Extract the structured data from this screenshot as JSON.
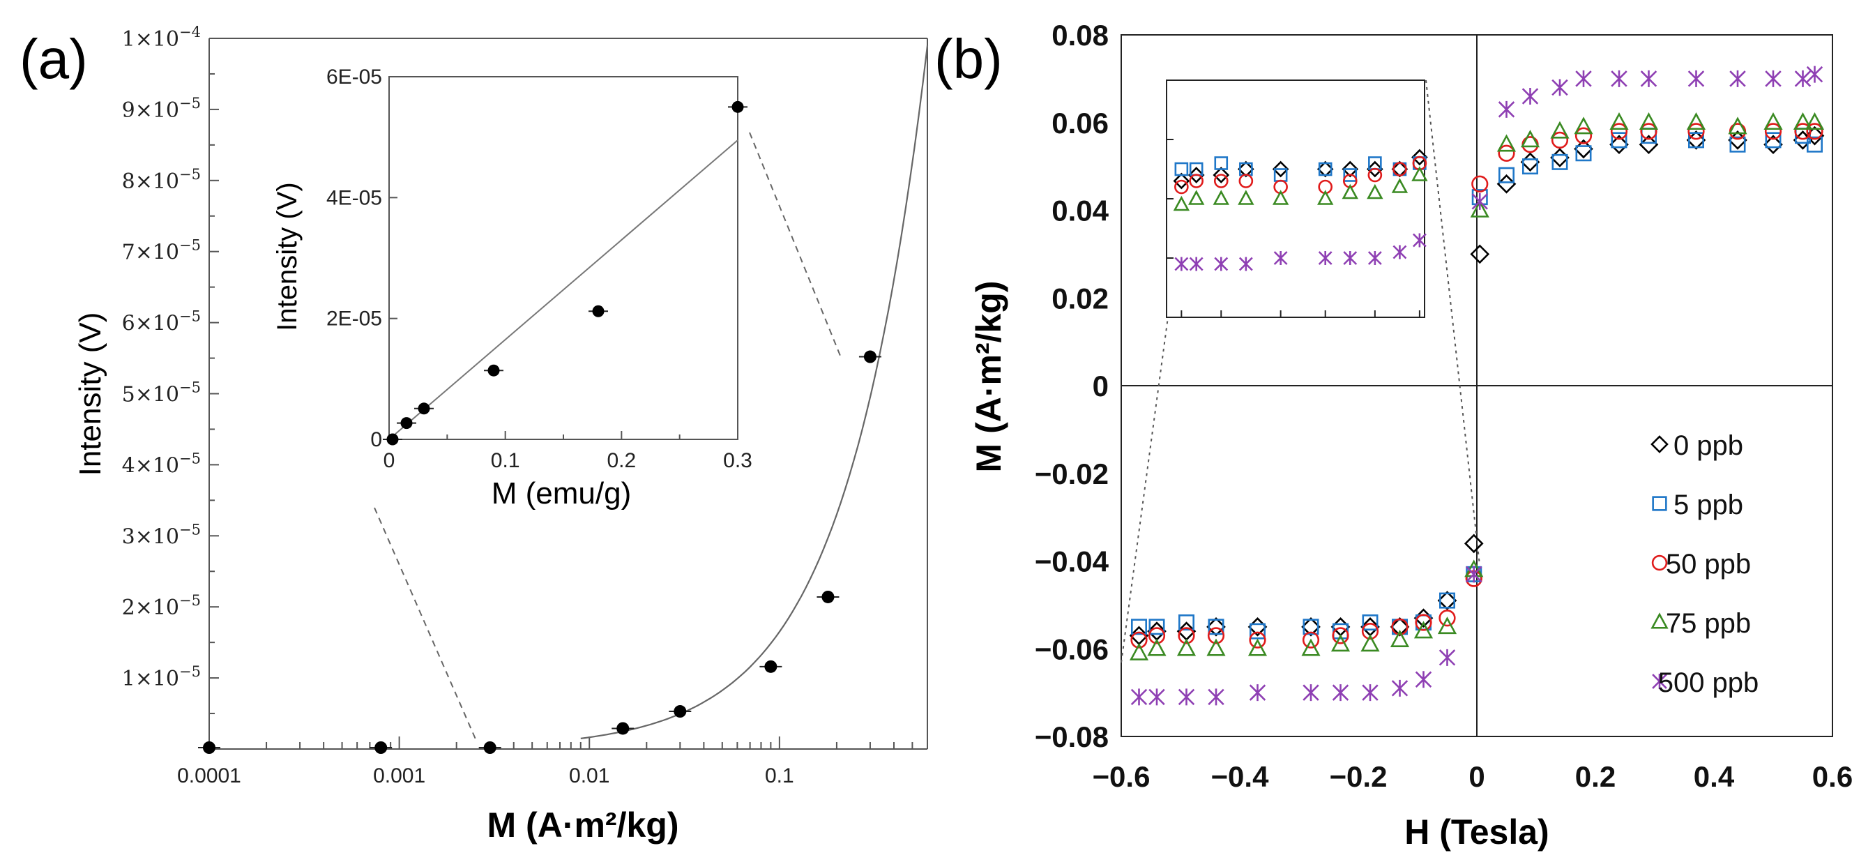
{
  "chart_data": [
    {
      "panel_label": "(a)",
      "type": "scatter",
      "xscale": "log",
      "xlabel": "M (A·m²/kg)",
      "ylabel": "Intensity  (V)",
      "xlim": [
        0.0001,
        0.6
      ],
      "ylim": [
        0,
        0.0001
      ],
      "x_ticks": [
        {
          "v": 0.0001,
          "label": "0.0001"
        },
        {
          "v": 0.001,
          "label": "0.001"
        },
        {
          "v": 0.01,
          "label": "0.01"
        },
        {
          "v": 0.1,
          "label": "0.1"
        }
      ],
      "y_ticks": [
        {
          "v": 1e-05,
          "mant": "1",
          "exp": "−5"
        },
        {
          "v": 2e-05,
          "mant": "2",
          "exp": "−5"
        },
        {
          "v": 3e-05,
          "mant": "3",
          "exp": "−5"
        },
        {
          "v": 4e-05,
          "mant": "4",
          "exp": "−5"
        },
        {
          "v": 5e-05,
          "mant": "5",
          "exp": "−5"
        },
        {
          "v": 6e-05,
          "mant": "6",
          "exp": "−5"
        },
        {
          "v": 7e-05,
          "mant": "7",
          "exp": "−5"
        },
        {
          "v": 8e-05,
          "mant": "8",
          "exp": "−5"
        },
        {
          "v": 9e-05,
          "mant": "9",
          "exp": "−5"
        },
        {
          "v": 0.0001,
          "mant": "1",
          "exp": "−4"
        }
      ],
      "points": [
        {
          "x": 0.0001,
          "y": 0
        },
        {
          "x": 0.0008,
          "y": 0
        },
        {
          "x": 0.003,
          "y": 0
        },
        {
          "x": 0.015,
          "y": 2.7e-06
        },
        {
          "x": 0.03,
          "y": 5.1e-06
        },
        {
          "x": 0.09,
          "y": 1.14e-05
        },
        {
          "x": 0.18,
          "y": 2.12e-05
        },
        {
          "x": 0.3,
          "y": 5.5e-05
        }
      ],
      "fit_slope": 0.000165,
      "inset": {
        "type": "scatter",
        "xlabel": "M (emu/g)",
        "ylabel": "Intensity  (V)",
        "xlim": [
          0,
          0.3
        ],
        "ylim": [
          0,
          6e-05
        ],
        "x_ticks": [
          {
            "v": 0,
            "label": "0"
          },
          {
            "v": 0.1,
            "label": "0.1"
          },
          {
            "v": 0.2,
            "label": "0.2"
          },
          {
            "v": 0.3,
            "label": "0.3"
          }
        ],
        "y_ticks": [
          {
            "v": 0,
            "label": "0"
          },
          {
            "v": 2e-05,
            "label": "2E-05"
          },
          {
            "v": 4e-05,
            "label": "4E-05"
          },
          {
            "v": 6e-05,
            "label": "6E-05"
          }
        ],
        "points": [
          {
            "x": 0.003,
            "y": 0
          },
          {
            "x": 0.015,
            "y": 2.7e-06
          },
          {
            "x": 0.03,
            "y": 5.1e-06
          },
          {
            "x": 0.09,
            "y": 1.14e-05
          },
          {
            "x": 0.18,
            "y": 2.12e-05
          },
          {
            "x": 0.3,
            "y": 5.5e-05
          }
        ]
      }
    },
    {
      "panel_label": "(b)",
      "type": "scatter",
      "xlabel": "H (Tesla)",
      "ylabel": "M (A·m²/kg)",
      "xlim": [
        -0.6,
        0.6
      ],
      "ylim": [
        -0.08,
        0.08
      ],
      "x_ticks": [
        {
          "v": -0.6,
          "label": "−0.6"
        },
        {
          "v": -0.4,
          "label": "−0.4"
        },
        {
          "v": -0.2,
          "label": "−0.2"
        },
        {
          "v": 0,
          "label": "0"
        },
        {
          "v": 0.2,
          "label": "0.2"
        },
        {
          "v": 0.4,
          "label": "0.4"
        },
        {
          "v": 0.6,
          "label": "0.6"
        }
      ],
      "y_ticks": [
        {
          "v": -0.08,
          "label": "−0.08"
        },
        {
          "v": -0.06,
          "label": "−0.06"
        },
        {
          "v": -0.04,
          "label": "−0.04"
        },
        {
          "v": -0.02,
          "label": "−0.02"
        },
        {
          "v": 0,
          "label": "0"
        },
        {
          "v": 0.02,
          "label": "0.02"
        },
        {
          "v": 0.04,
          "label": "0.04"
        },
        {
          "v": 0.06,
          "label": "0.06"
        },
        {
          "v": 0.08,
          "label": "0.08"
        }
      ],
      "x": [
        -0.57,
        -0.54,
        -0.49,
        -0.44,
        -0.37,
        -0.28,
        -0.23,
        -0.18,
        -0.13,
        -0.09,
        -0.05,
        -0.005,
        0.005,
        0.05,
        0.09,
        0.14,
        0.18,
        0.24,
        0.29,
        0.37,
        0.44,
        0.5,
        0.55,
        0.57
      ],
      "legend_position": "lower-right",
      "series": [
        {
          "name": "0 ppb",
          "marker": "diamond",
          "color": "#000000",
          "values": [
            -0.057,
            -0.056,
            -0.056,
            -0.055,
            -0.055,
            -0.055,
            -0.055,
            -0.055,
            -0.055,
            -0.053,
            -0.049,
            -0.036,
            0.03,
            0.046,
            0.051,
            0.052,
            0.054,
            0.055,
            0.055,
            0.056,
            0.056,
            0.055,
            0.056,
            0.057
          ]
        },
        {
          "name": "5 ppb",
          "marker": "square",
          "color": "#1f77c8",
          "values": [
            -0.055,
            -0.055,
            -0.054,
            -0.055,
            -0.056,
            -0.055,
            -0.056,
            -0.054,
            -0.055,
            -0.054,
            -0.049,
            -0.043,
            0.043,
            0.048,
            0.05,
            0.051,
            0.053,
            0.056,
            0.057,
            0.056,
            0.055,
            0.056,
            0.057,
            0.055
          ]
        },
        {
          "name": "50 ppb",
          "marker": "circle",
          "color": "#e01b1b",
          "values": [
            -0.058,
            -0.057,
            -0.057,
            -0.057,
            -0.058,
            -0.058,
            -0.057,
            -0.056,
            -0.055,
            -0.054,
            -0.053,
            -0.044,
            0.046,
            0.053,
            0.055,
            0.056,
            0.057,
            0.058,
            0.058,
            0.058,
            0.058,
            0.058,
            0.058,
            0.058
          ]
        },
        {
          "name": "75 ppb",
          "marker": "triangle",
          "color": "#3a8a22",
          "values": [
            -0.061,
            -0.06,
            -0.06,
            -0.06,
            -0.06,
            -0.06,
            -0.059,
            -0.059,
            -0.058,
            -0.056,
            -0.055,
            -0.042,
            0.04,
            0.055,
            0.056,
            0.058,
            0.059,
            0.06,
            0.06,
            0.06,
            0.059,
            0.06,
            0.06,
            0.06
          ]
        },
        {
          "name": "500 ppb",
          "marker": "asterisk",
          "color": "#8e3fb3",
          "values": [
            -0.071,
            -0.071,
            -0.071,
            -0.071,
            -0.07,
            -0.07,
            -0.07,
            -0.07,
            -0.069,
            -0.067,
            -0.062,
            -0.043,
            0.042,
            0.063,
            0.066,
            0.068,
            0.07,
            0.07,
            0.07,
            0.07,
            0.07,
            0.07,
            0.07,
            0.071
          ]
        }
      ],
      "inset": {
        "x_ticks": [
          -0.57,
          -0.49,
          -0.37,
          -0.28,
          -0.18,
          -0.09
        ],
        "y_ticks": [
          -0.08,
          -0.07,
          -0.06,
          -0.05,
          -0.04
        ]
      }
    }
  ]
}
